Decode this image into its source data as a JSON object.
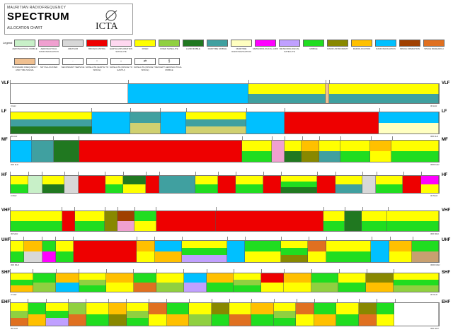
{
  "header": {
    "subtitle": "MAURITIAN RADIOFREQUENCY",
    "title": "SPECTRUM",
    "caption": "ALLOCATION CHART",
    "logo": "ICTA"
  },
  "legend": {
    "label": "Legend",
    "items": [
      {
        "name": "AERONAUTICAL MOBILE",
        "color": "#c8f0c8",
        "sym": ""
      },
      {
        "name": "AERONAUTICAL RADIONAVIGATION",
        "color": "#f0a0d0",
        "sym": ""
      },
      {
        "name": "AMATEUR",
        "color": "#d8d8d8",
        "sym": ""
      },
      {
        "name": "BROADCASTING",
        "color": "#ee0000",
        "sym": ""
      },
      {
        "name": "EARTH EXPLORATION SATELLITE",
        "color": "#ffd8f0",
        "sym": ""
      },
      {
        "name": "FIXED",
        "color": "#ffff00",
        "sym": ""
      },
      {
        "name": "FIXED SATELLITE",
        "color": "#90d040",
        "sym": ""
      },
      {
        "name": "LAND MOBILE",
        "color": "#207820",
        "sym": ""
      },
      {
        "name": "MARITIME MOBILE",
        "color": "#40a0a0",
        "sym": ""
      },
      {
        "name": "MARITIME RADIONAVIGATION",
        "color": "#ffffc0",
        "sym": ""
      },
      {
        "name": "METEOROLOGICAL AIDS",
        "color": "#ff00ff",
        "sym": ""
      },
      {
        "name": "METEOROLOGICAL SATELLITE",
        "color": "#c0a0ff",
        "sym": ""
      },
      {
        "name": "MOBILE",
        "color": "#20dd20",
        "sym": ""
      },
      {
        "name": "RADIO ASTRONOMY",
        "color": "#888800",
        "sym": ""
      },
      {
        "name": "RADIOLOCATION",
        "color": "#ffc000",
        "sym": ""
      },
      {
        "name": "RADIONAVIGATION",
        "color": "#00c0ff",
        "sym": ""
      },
      {
        "name": "SPACE OPERATION",
        "color": "#a04000",
        "sym": ""
      },
      {
        "name": "SPACE RESEARCH",
        "color": "#e07020",
        "sym": ""
      },
      {
        "name": "STANDARD FREQUENCY AND TIME SIGNAL",
        "color": "#f0c090",
        "sym": ""
      },
      {
        "name": "NOT ALLOCATED",
        "color": "#ffffff",
        "sym": ""
      },
      {
        "name": "SECONDARY SERVICE",
        "color": "#ffffff",
        "sym": "·"
      },
      {
        "name": "SATELLITE (EARTH TO SPACE)",
        "color": "#ffffff",
        "sym": "↑"
      },
      {
        "name": "SATELLITE (SPACE TO EARTH)",
        "color": "#ffffff",
        "sym": "↓"
      },
      {
        "name": "SATELLITE (SPACE TO SPACE)",
        "color": "#ffffff",
        "sym": "⇄"
      },
      {
        "name": "EXCEPT AERONAUTICAL MOBILE",
        "color": "#ffffff",
        "sym": "§"
      }
    ]
  },
  "bands": [
    {
      "name": "VLF",
      "lo": "3 kHz",
      "hi": "30 kHz",
      "segs": [
        {
          "w": 27.5,
          "c": [
            "#ffffff"
          ]
        },
        {
          "w": 28,
          "c": [
            "#00c0ff"
          ]
        },
        {
          "w": 18,
          "c": [
            "#ffff00",
            "#40a0a0"
          ]
        },
        {
          "w": 0.8,
          "c": [
            "#f0c090"
          ]
        },
        {
          "w": 25.7,
          "c": [
            "#ffff00",
            "#40a0a0"
          ]
        }
      ]
    },
    {
      "name": "LF",
      "lo": "30 kHz",
      "hi": "300 kHz",
      "segs": [
        {
          "w": 19,
          "c": [
            "#ffff00",
            "#40a0a0",
            "#207820"
          ]
        },
        {
          "w": 9,
          "c": [
            "#00c0ff"
          ]
        },
        {
          "w": 7,
          "c": [
            "#40a0a0",
            "#d0d070"
          ]
        },
        {
          "w": 6,
          "c": [
            "#00c0ff"
          ]
        },
        {
          "w": 14,
          "c": [
            "#ffff00",
            "#40a0a0",
            "#d0d070"
          ]
        },
        {
          "w": 9,
          "c": [
            "#00c0ff"
          ]
        },
        {
          "w": 22,
          "c": [
            "#ee0000"
          ]
        },
        {
          "w": 14,
          "c": [
            "#00c0ff",
            "#ffffc0"
          ]
        }
      ]
    },
    {
      "name": "MF",
      "lo": "300 kHz",
      "hi": "3000 kHz",
      "segs": [
        {
          "w": 5,
          "c": [
            "#00c0ff"
          ]
        },
        {
          "w": 5,
          "c": [
            "#40a0a0"
          ]
        },
        {
          "w": 6,
          "c": [
            "#207820"
          ]
        },
        {
          "w": 38,
          "c": [
            "#ee0000"
          ]
        },
        {
          "w": 7,
          "c": [
            "#ffff00",
            "#20dd20"
          ]
        },
        {
          "w": 3,
          "c": [
            "#f0a0d0"
          ]
        },
        {
          "w": 4,
          "c": [
            "#ffff00",
            "#207820"
          ]
        },
        {
          "w": 4,
          "c": [
            "#ffc000",
            "#888800"
          ]
        },
        {
          "w": 5,
          "c": [
            "#ffff00",
            "#40a0a0"
          ]
        },
        {
          "w": 7,
          "c": [
            "#ffff00",
            "#20dd20"
          ]
        },
        {
          "w": 5,
          "c": [
            "#ffc000",
            "#ffff00"
          ]
        },
        {
          "w": 11,
          "c": [
            "#ffff00",
            "#20dd20"
          ]
        }
      ]
    },
    {
      "name": "HF",
      "lo": "3 MHz",
      "hi": "30 MHz",
      "segs": [
        {
          "w": 4,
          "c": [
            "#ffff00",
            "#20dd20"
          ]
        },
        {
          "w": 3,
          "c": [
            "#c8f0c8"
          ]
        },
        {
          "w": 5,
          "c": [
            "#ffff00",
            "#207820"
          ]
        },
        {
          "w": 3,
          "c": [
            "#d8d8d8"
          ]
        },
        {
          "w": 6,
          "c": [
            "#ee0000"
          ]
        },
        {
          "w": 4,
          "c": [
            "#ffff00",
            "#20dd20"
          ]
        },
        {
          "w": 5,
          "c": [
            "#207820",
            "#ffff00"
          ]
        },
        {
          "w": 3,
          "c": [
            "#ee0000"
          ]
        },
        {
          "w": 8,
          "c": [
            "#40a0a0"
          ]
        },
        {
          "w": 5,
          "c": [
            "#ffff00",
            "#20dd20"
          ]
        },
        {
          "w": 4,
          "c": [
            "#ee0000"
          ]
        },
        {
          "w": 6,
          "c": [
            "#ffff00",
            "#20dd20"
          ]
        },
        {
          "w": 4,
          "c": [
            "#ee0000"
          ]
        },
        {
          "w": 8,
          "c": [
            "#ffff00",
            "#20dd20",
            "#207820"
          ]
        },
        {
          "w": 4,
          "c": [
            "#ee0000"
          ]
        },
        {
          "w": 6,
          "c": [
            "#ffff00",
            "#40a0a0"
          ]
        },
        {
          "w": 3,
          "c": [
            "#d8d8d8"
          ]
        },
        {
          "w": 6,
          "c": [
            "#ffff00",
            "#20dd20"
          ]
        },
        {
          "w": 4,
          "c": [
            "#ee0000"
          ]
        },
        {
          "w": 4,
          "c": [
            "#ff00ff",
            "#ffff00"
          ]
        }
      ]
    },
    {
      "name": "VHF",
      "lo": "30 MHz",
      "hi": "300 MHz",
      "segs": [
        {
          "w": 12,
          "c": [
            "#ffff00",
            "#20dd20"
          ]
        },
        {
          "w": 3,
          "c": [
            "#ee0000"
          ]
        },
        {
          "w": 7,
          "c": [
            "#ffff00",
            "#20dd20"
          ]
        },
        {
          "w": 3,
          "c": [
            "#888800"
          ]
        },
        {
          "w": 4,
          "c": [
            "#a04000",
            "#f0a0d0"
          ]
        },
        {
          "w": 5,
          "c": [
            "#20dd20",
            "#ffff00"
          ]
        },
        {
          "w": 14,
          "c": [
            "#ee0000"
          ]
        },
        {
          "w": 25,
          "c": [
            "#ee0000"
          ]
        },
        {
          "w": 5,
          "c": [
            "#ffff00",
            "#20dd20"
          ]
        },
        {
          "w": 4,
          "c": [
            "#207820"
          ]
        },
        {
          "w": 6,
          "c": [
            "#ffff00",
            "#20dd20"
          ]
        },
        {
          "w": 12,
          "c": [
            "#ffff00",
            "#20dd20"
          ]
        }
      ]
    },
    {
      "name": "UHF",
      "lo": "300 MHz",
      "hi": "3000 MHz",
      "segs": [
        {
          "w": 3,
          "c": [
            "#ffff00",
            "#20dd20"
          ]
        },
        {
          "w": 4,
          "c": [
            "#ffc000",
            "#d8d8d8"
          ]
        },
        {
          "w": 3,
          "c": [
            "#20dd20",
            "#ff00ff"
          ]
        },
        {
          "w": 4,
          "c": [
            "#ffff00",
            "#20dd20"
          ]
        },
        {
          "w": 14,
          "c": [
            "#ee0000"
          ]
        },
        {
          "w": 4,
          "c": [
            "#ffc000",
            "#ffff00"
          ]
        },
        {
          "w": 6,
          "c": [
            "#00c0ff",
            "#ffc000"
          ]
        },
        {
          "w": 10,
          "c": [
            "#ffff00",
            "#20dd20",
            "#c0a0ff"
          ]
        },
        {
          "w": 4,
          "c": [
            "#00c0ff"
          ]
        },
        {
          "w": 8,
          "c": [
            "#20dd20",
            "#ffff00"
          ]
        },
        {
          "w": 6,
          "c": [
            "#ffff00",
            "#20dd20",
            "#888800"
          ]
        },
        {
          "w": 4,
          "c": [
            "#e07020",
            "#ffff00"
          ]
        },
        {
          "w": 10,
          "c": [
            "#ffff00",
            "#20dd20"
          ]
        },
        {
          "w": 4,
          "c": [
            "#00c0ff"
          ]
        },
        {
          "w": 5,
          "c": [
            "#ffc000",
            "#ffff00"
          ]
        },
        {
          "w": 6,
          "c": [
            "#20dd20",
            "#c8a070"
          ]
        }
      ]
    },
    {
      "name": "SHF",
      "lo": "3 GHz",
      "hi": "30 GHz",
      "segs": [
        {
          "w": 5,
          "c": [
            "#ffff00",
            "#20dd20",
            "#ffc000"
          ]
        },
        {
          "w": 5,
          "c": [
            "#20dd20",
            "#90d040"
          ]
        },
        {
          "w": 5,
          "c": [
            "#ffc000",
            "#00c0ff"
          ]
        },
        {
          "w": 6,
          "c": [
            "#ffff00",
            "#90d040",
            "#20dd20"
          ]
        },
        {
          "w": 6,
          "c": [
            "#ffc000",
            "#ffff00"
          ]
        },
        {
          "w": 5,
          "c": [
            "#20dd20",
            "#e07020"
          ]
        },
        {
          "w": 6,
          "c": [
            "#ffff00",
            "#90d040"
          ]
        },
        {
          "w": 5,
          "c": [
            "#00c0ff",
            "#c0a0ff"
          ]
        },
        {
          "w": 6,
          "c": [
            "#ffc000",
            "#20dd20"
          ]
        },
        {
          "w": 6,
          "c": [
            "#ffff00",
            "#90d040",
            "#20dd20"
          ]
        },
        {
          "w": 5,
          "c": [
            "#ee0000",
            "#ffff00"
          ]
        },
        {
          "w": 6,
          "c": [
            "#ffc000",
            "#ffff00"
          ]
        },
        {
          "w": 6,
          "c": [
            "#20dd20",
            "#90d040"
          ]
        },
        {
          "w": 6,
          "c": [
            "#ffff00",
            "#20dd20"
          ]
        },
        {
          "w": 6,
          "c": [
            "#888800",
            "#ffc000"
          ]
        },
        {
          "w": 10,
          "c": [
            "#ffff00",
            "#20dd20",
            "#90d040"
          ]
        }
      ]
    },
    {
      "name": "EHF",
      "lo": "30 GHz",
      "hi": "300 GHz",
      "segs": [
        {
          "w": 4,
          "c": [
            "#ffff00",
            "#90d040",
            "#e07020"
          ]
        },
        {
          "w": 4,
          "c": [
            "#20dd20",
            "#ffc000"
          ]
        },
        {
          "w": 5,
          "c": [
            "#ffff00",
            "#20dd20",
            "#c0a0ff"
          ]
        },
        {
          "w": 4,
          "c": [
            "#90d040",
            "#e07020"
          ]
        },
        {
          "w": 5,
          "c": [
            "#ffff00",
            "#20dd20"
          ]
        },
        {
          "w": 4,
          "c": [
            "#ffc000",
            "#888800"
          ]
        },
        {
          "w": 5,
          "c": [
            "#ffff00",
            "#90d040",
            "#20dd20"
          ]
        },
        {
          "w": 4,
          "c": [
            "#e07020",
            "#ffff00"
          ]
        },
        {
          "w": 5,
          "c": [
            "#20dd20",
            "#ffc000"
          ]
        },
        {
          "w": 5,
          "c": [
            "#ffff00",
            "#90d040"
          ]
        },
        {
          "w": 4,
          "c": [
            "#888800",
            "#20dd20"
          ]
        },
        {
          "w": 5,
          "c": [
            "#ffff00",
            "#e07020"
          ]
        },
        {
          "w": 5,
          "c": [
            "#ffc000",
            "#20dd20"
          ]
        },
        {
          "w": 5,
          "c": [
            "#ffff00",
            "#90d040",
            "#20dd20"
          ]
        },
        {
          "w": 4,
          "c": [
            "#e07020",
            "#ffff00"
          ]
        },
        {
          "w": 5,
          "c": [
            "#20dd20",
            "#ffc000"
          ]
        },
        {
          "w": 5,
          "c": [
            "#ffff00",
            "#20dd20"
          ]
        },
        {
          "w": 4,
          "c": [
            "#888800",
            "#e07020"
          ]
        },
        {
          "w": 4,
          "c": [
            "#20dd20",
            "#ffff00"
          ]
        },
        {
          "w": 10,
          "c": [
            "#ffffff"
          ]
        }
      ]
    }
  ]
}
